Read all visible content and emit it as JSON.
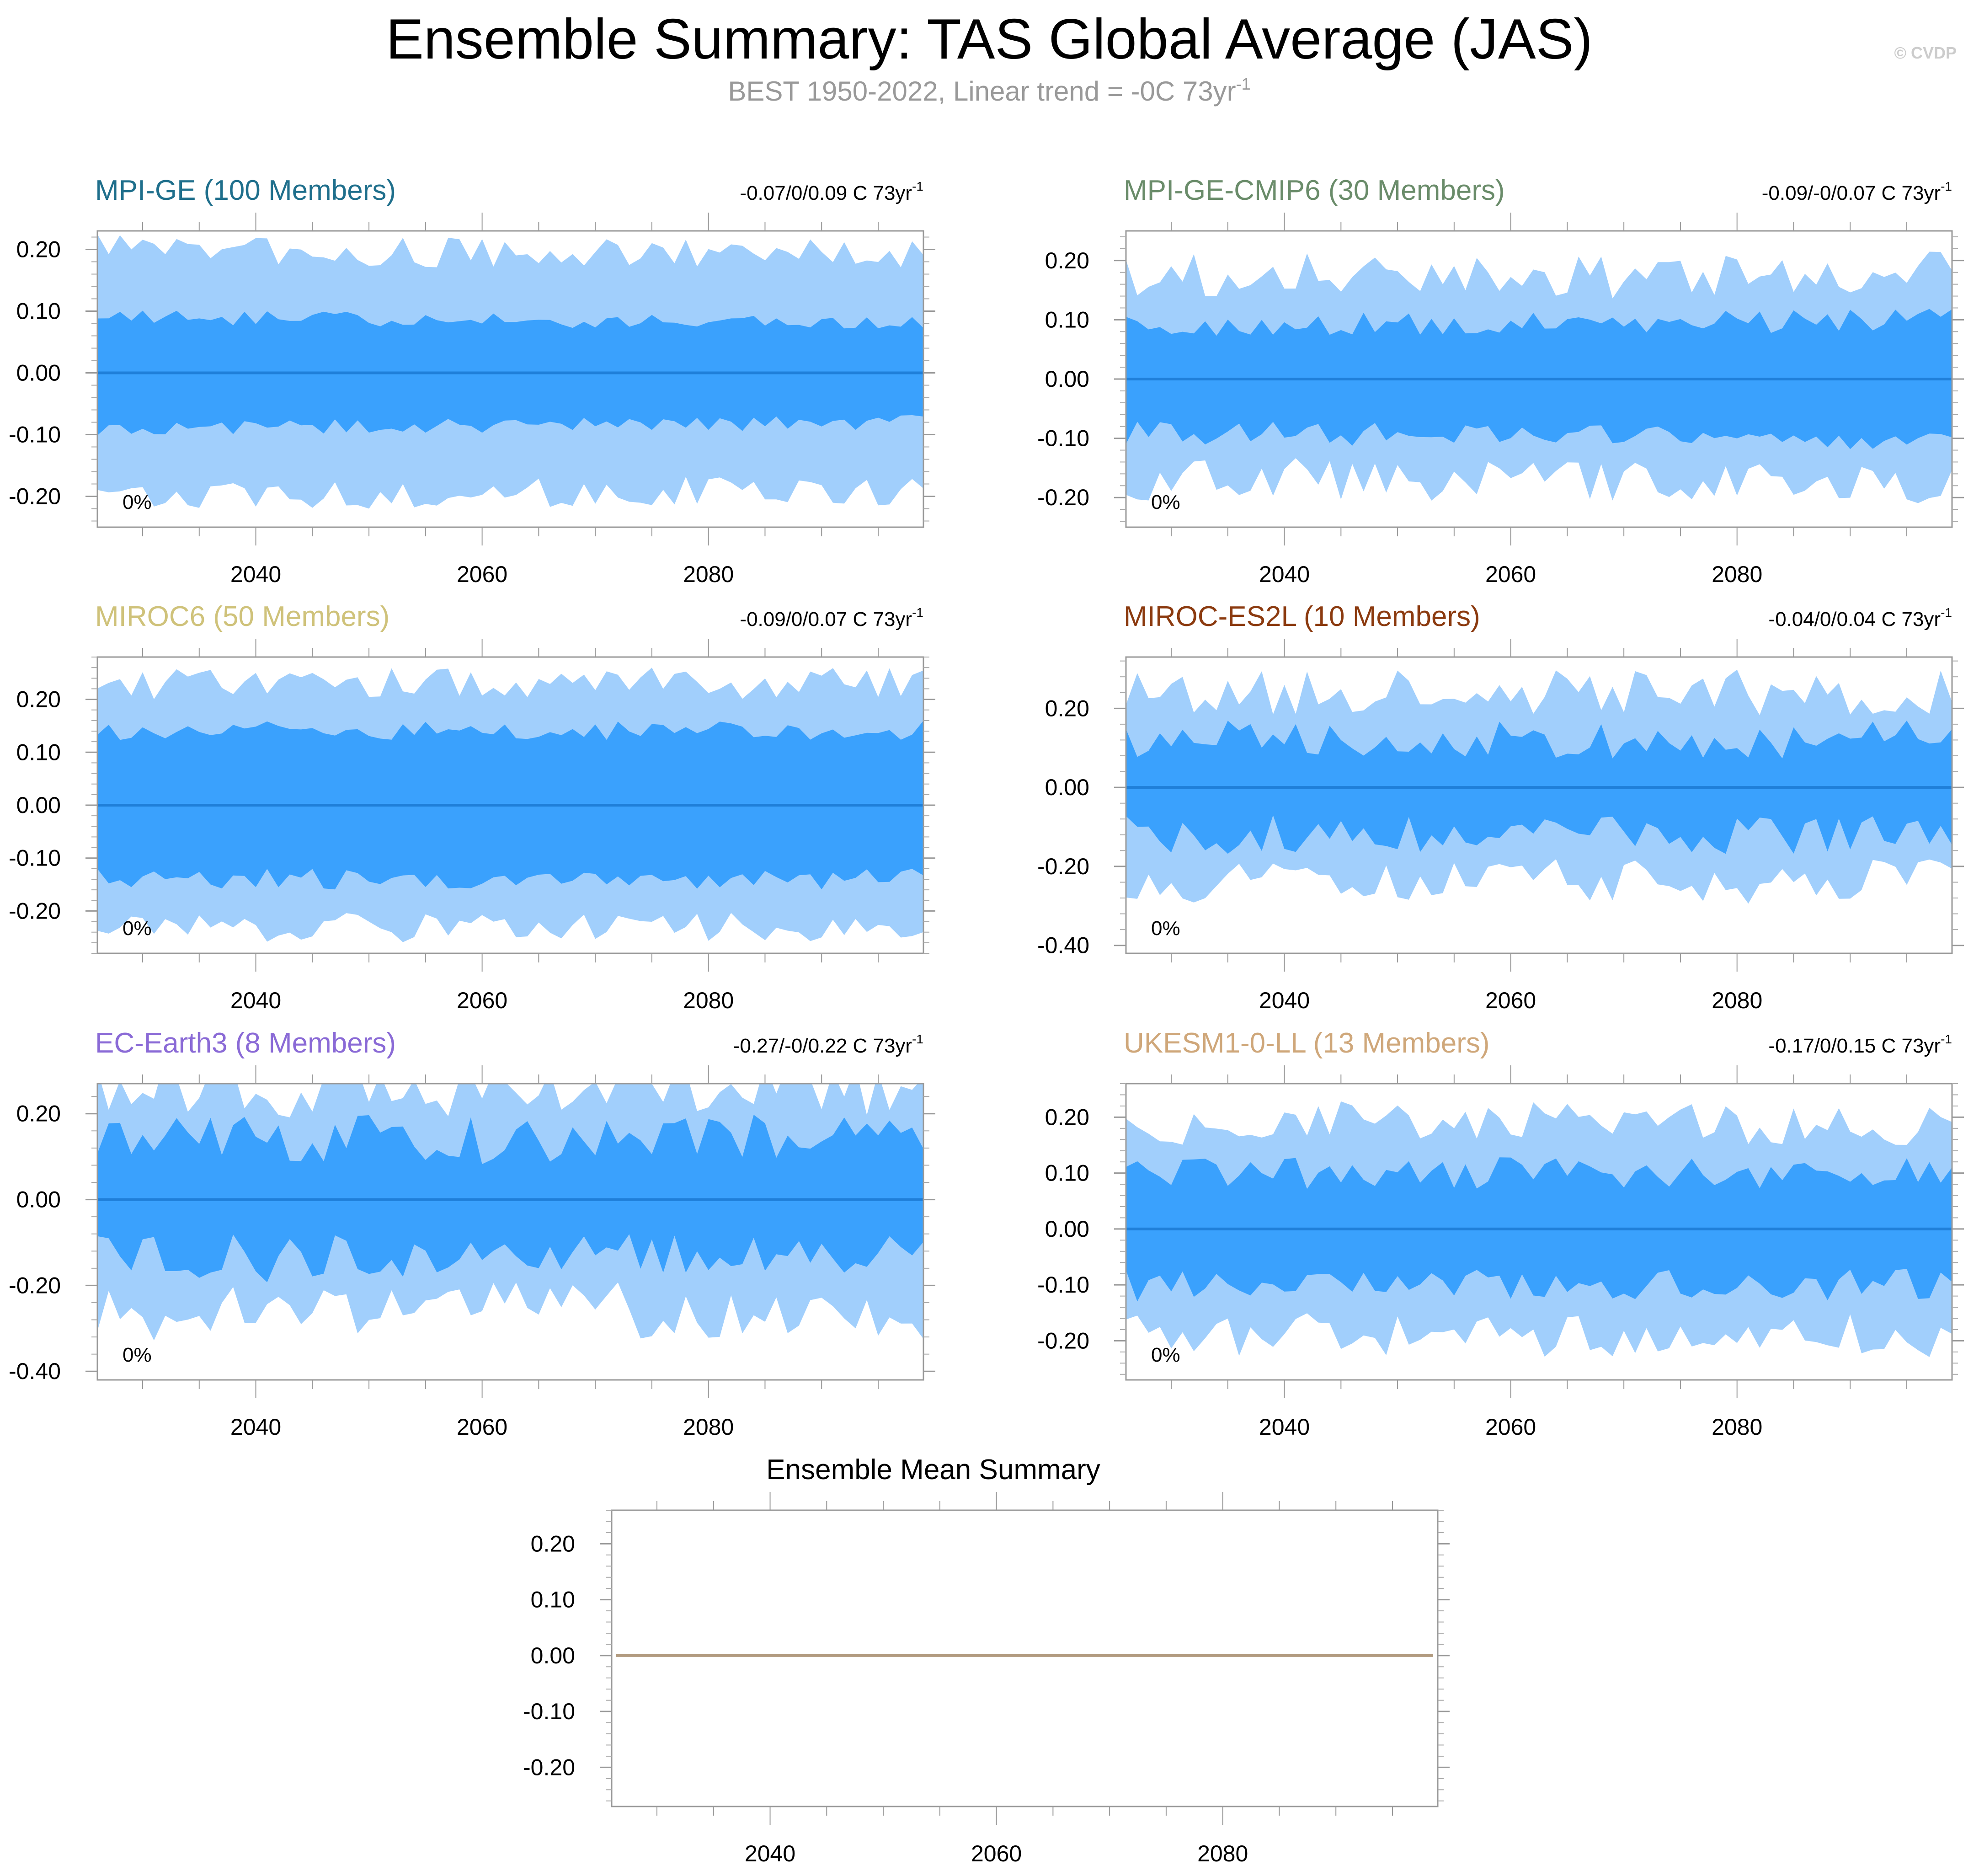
{
  "header": {
    "title": "Ensemble Summary: TAS Global Average (JAS)",
    "subtitle": "BEST 1950-2022, Linear trend = -0C 73yr",
    "subtitle_sup": "-1",
    "watermark": "© CVDP"
  },
  "colors": {
    "outer_band": "#a1cffc",
    "inner_band": "#3aa1fd",
    "mean_line": "#1f7fd9",
    "ensemble_mean_line": "#b29b80"
  },
  "chart_data": [
    {
      "type": "area",
      "title": "MPI-GE (100 Members)",
      "title_color": "#1f6f8c",
      "range_text": "-0.07/0/0.09 C 73yr",
      "range_sup": "-1",
      "percent_label": "0%",
      "x": [
        2026,
        2099
      ],
      "ylim": [
        -0.25,
        0.23
      ],
      "yticks": [
        -0.2,
        -0.1,
        0.0,
        0.1,
        0.2
      ],
      "ytick_labels": [
        "-0.20",
        "-0.10",
        "0.00",
        "0.10",
        "0.20"
      ],
      "xticks": [
        2040,
        2060,
        2080
      ],
      "xtick_labels": [
        "2040",
        "2060",
        "2080"
      ],
      "band_outer": [
        0.2,
        0.19
      ],
      "band_inner": [
        0.09,
        0.08
      ],
      "amp_inner": 0.012,
      "amp_outer": 0.025,
      "seed": 1,
      "series_mean": 0.0
    },
    {
      "type": "area",
      "title": "MPI-GE-CMIP6 (30 Members)",
      "title_color": "#6a8c6a",
      "range_text": "-0.09/-0/0.07 C 73yr",
      "range_sup": "-1",
      "percent_label": "0%",
      "x": [
        2026,
        2099
      ],
      "ylim": [
        -0.25,
        0.25
      ],
      "yticks": [
        -0.2,
        -0.1,
        0.0,
        0.1,
        0.2
      ],
      "ytick_labels": [
        "-0.20",
        "-0.10",
        "0.00",
        "0.10",
        "0.20"
      ],
      "xticks": [
        2040,
        2060,
        2080
      ],
      "xtick_labels": [
        "2040",
        "2060",
        "2080"
      ],
      "band_outer": [
        0.17,
        0.18
      ],
      "band_inner": [
        0.09,
        0.1
      ],
      "amp_inner": 0.02,
      "amp_outer": 0.04,
      "seed": 2,
      "series_mean": 0.0
    },
    {
      "type": "area",
      "title": "MIROC6 (50 Members)",
      "title_color": "#cfc27a",
      "range_text": "-0.09/0/0.07 C 73yr",
      "range_sup": "-1",
      "percent_label": "0%",
      "x": [
        2026,
        2099
      ],
      "ylim": [
        -0.28,
        0.28
      ],
      "yticks": [
        -0.2,
        -0.1,
        0.0,
        0.1,
        0.2
      ],
      "ytick_labels": [
        "-0.20",
        "-0.10",
        "0.00",
        "0.10",
        "0.20"
      ],
      "xticks": [
        2040,
        2060,
        2080
      ],
      "xtick_labels": [
        "2040",
        "2060",
        "2080"
      ],
      "band_outer": [
        0.23,
        0.23
      ],
      "band_inner": [
        0.14,
        0.14
      ],
      "amp_inner": 0.02,
      "amp_outer": 0.03,
      "seed": 3,
      "series_mean": 0.0
    },
    {
      "type": "area",
      "title": "MIROC-ES2L (10 Members)",
      "title_color": "#8b3a0f",
      "range_text": "-0.04/0/0.04 C 73yr",
      "range_sup": "-1",
      "percent_label": "0%",
      "x": [
        2026,
        2099
      ],
      "ylim": [
        -0.42,
        0.33
      ],
      "yticks": [
        -0.4,
        -0.2,
        0.0,
        0.2
      ],
      "ytick_labels": [
        "-0.40",
        "-0.20",
        "0.00",
        "0.20"
      ],
      "xticks": [
        2040,
        2060,
        2080
      ],
      "xtick_labels": [
        "2040",
        "2060",
        "2080"
      ],
      "band_outer": [
        0.24,
        0.24
      ],
      "band_inner": [
        0.12,
        0.12
      ],
      "amp_inner": 0.05,
      "amp_outer": 0.06,
      "seed": 4,
      "series_mean": 0.0
    },
    {
      "type": "area",
      "title": "EC-Earth3 (8 Members)",
      "title_color": "#8a6ad6",
      "range_text": "-0.27/-0/0.22 C 73yr",
      "range_sup": "-1",
      "percent_label": "0%",
      "x": [
        2026,
        2099
      ],
      "ylim": [
        -0.42,
        0.27
      ],
      "yticks": [
        -0.4,
        -0.2,
        0.0,
        0.2
      ],
      "ytick_labels": [
        "-0.40",
        "-0.20",
        "0.00",
        "0.20"
      ],
      "xticks": [
        2040,
        2060,
        2080
      ],
      "xtick_labels": [
        "2040",
        "2060",
        "2080"
      ],
      "band_outer": [
        0.26,
        0.26
      ],
      "band_inner": [
        0.14,
        0.14
      ],
      "amp_inner": 0.06,
      "amp_outer": 0.07,
      "seed": 5,
      "series_mean": 0.0
    },
    {
      "type": "area",
      "title": "UKESM1-0-LL (13 Members)",
      "title_color": "#cfa77a",
      "range_text": "-0.17/0/0.15 C 73yr",
      "range_sup": "-1",
      "percent_label": "0%",
      "x": [
        2026,
        2099
      ],
      "ylim": [
        -0.27,
        0.26
      ],
      "yticks": [
        -0.2,
        -0.1,
        0.0,
        0.1,
        0.2
      ],
      "ytick_labels": [
        "-0.20",
        "-0.10",
        "0.00",
        "0.10",
        "0.20"
      ],
      "xticks": [
        2040,
        2060,
        2080
      ],
      "xtick_labels": [
        "2040",
        "2060",
        "2080"
      ],
      "band_outer": [
        0.19,
        0.19
      ],
      "band_inner": [
        0.1,
        0.1
      ],
      "amp_inner": 0.03,
      "amp_outer": 0.04,
      "seed": 6,
      "series_mean": 0.0
    },
    {
      "type": "line",
      "title": "Ensemble Mean Summary",
      "title_color": "#000000",
      "x": [
        2026,
        2099
      ],
      "ylim": [
        -0.27,
        0.26
      ],
      "yticks": [
        -0.2,
        -0.1,
        0.0,
        0.1,
        0.2
      ],
      "ytick_labels": [
        "-0.20",
        "-0.10",
        "0.00",
        "0.10",
        "0.20"
      ],
      "xticks": [
        2040,
        2060,
        2080
      ],
      "xtick_labels": [
        "2040",
        "2060",
        "2080"
      ],
      "series": [
        {
          "name": "ensemble mean",
          "value": 0.0
        }
      ]
    }
  ]
}
